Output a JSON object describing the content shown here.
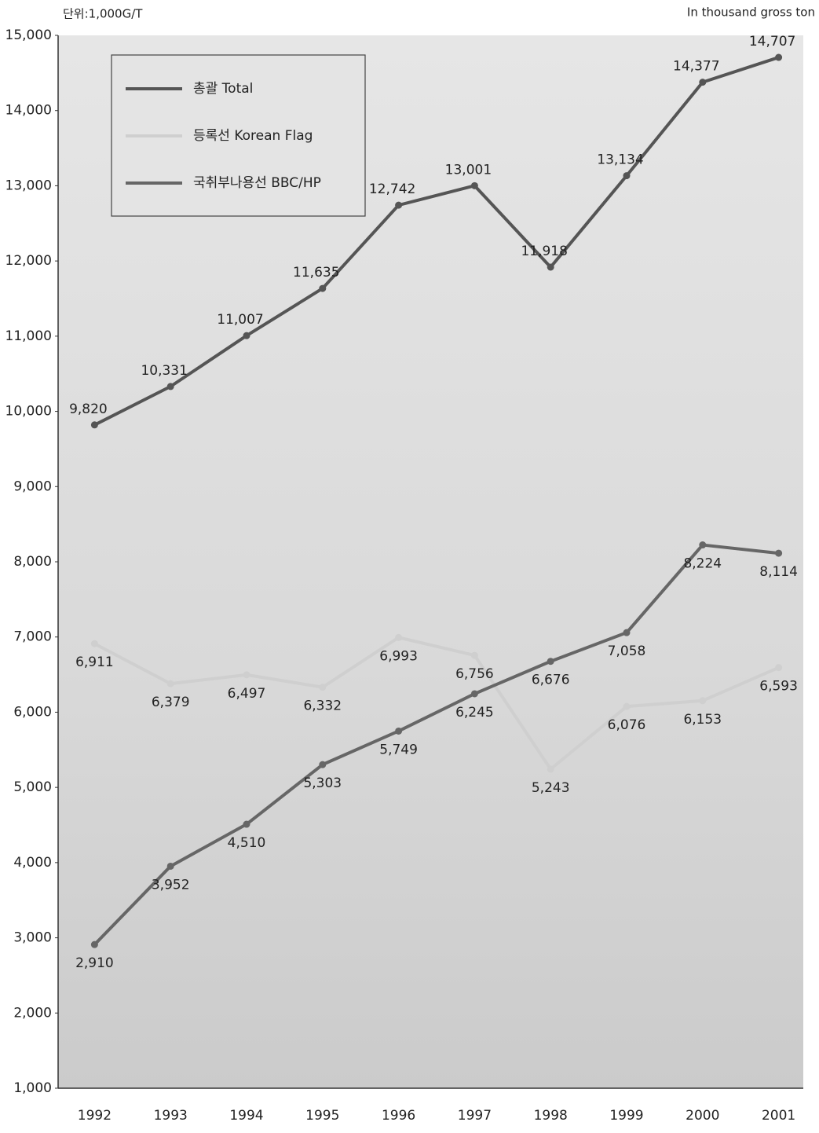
{
  "chart_data": {
    "type": "line",
    "unit_left": "단위:1,000G/T",
    "unit_right": "In thousand gross ton",
    "categories": [
      "1992",
      "1993",
      "1994",
      "1995",
      "1996",
      "1997",
      "1998",
      "1999",
      "2000",
      "2001"
    ],
    "ylim": [
      1000,
      15000
    ],
    "yticks": [
      {
        "value": 1000,
        "label": "1,000"
      },
      {
        "value": 2000,
        "label": "2,000"
      },
      {
        "value": 3000,
        "label": "3,000"
      },
      {
        "value": 4000,
        "label": "4,000"
      },
      {
        "value": 5000,
        "label": "5,000"
      },
      {
        "value": 6000,
        "label": "6,000"
      },
      {
        "value": 7000,
        "label": "7,000"
      },
      {
        "value": 8000,
        "label": "8,000"
      },
      {
        "value": 9000,
        "label": "9,000"
      },
      {
        "value": 10000,
        "label": "10,000"
      },
      {
        "value": 11000,
        "label": "11,000"
      },
      {
        "value": 12000,
        "label": "12,000"
      },
      {
        "value": 13000,
        "label": "13,000"
      },
      {
        "value": 14000,
        "label": "14,000"
      },
      {
        "value": 15000,
        "label": "15,000"
      }
    ],
    "grid": false,
    "legend": "top-left",
    "series": [
      {
        "name": "총괄  Total",
        "color": "#555555",
        "values": [
          9820,
          10331,
          11007,
          11635,
          12742,
          13001,
          11918,
          13134,
          14377,
          14707
        ],
        "value_labels": [
          "9,820",
          "10,331",
          "11,007",
          "11,635",
          "12,742",
          "13,001",
          "11,918",
          "13,134",
          "14,377",
          "14,707"
        ]
      },
      {
        "name": "등록선  Korean Flag",
        "color": "#cfcfcf",
        "values": [
          6911,
          6379,
          6497,
          6332,
          6993,
          6756,
          5243,
          6076,
          6153,
          6593
        ],
        "value_labels": [
          "6,911",
          "6,379",
          "6,497",
          "6,332",
          "6,993",
          "6,756",
          "5,243",
          "6,076",
          "6,153",
          "6,593"
        ]
      },
      {
        "name": "국취부나용선  BBC/HP",
        "color": "#666666",
        "values": [
          2910,
          3952,
          4510,
          5303,
          5749,
          6245,
          6676,
          7058,
          8224,
          8114
        ],
        "value_labels": [
          "2,910",
          "3,952",
          "4,510",
          "5,303",
          "5,749",
          "6,245",
          "6,676",
          "7,058",
          "8,224",
          "8,114"
        ]
      }
    ]
  }
}
